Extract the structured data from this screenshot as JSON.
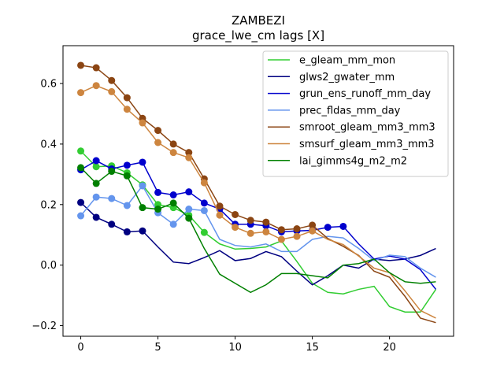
{
  "chart_data": {
    "type": "line",
    "title": "ZAMBEZI",
    "subtitle": "grace_lwe_cm lags [X]",
    "xlabel": "",
    "ylabel": "",
    "xlim": [
      -1.15,
      24.15
    ],
    "ylim": [
      -0.235,
      0.725
    ],
    "xticks": [
      0,
      5,
      10,
      15,
      20
    ],
    "yticks": [
      -0.2,
      0.0,
      0.2,
      0.4,
      0.6
    ],
    "ytick_labels": [
      "−0.2",
      "0.0",
      "0.2",
      "0.4",
      "0.6"
    ],
    "legend_position": "top-right",
    "grid": false,
    "x": [
      0,
      1,
      2,
      3,
      4,
      5,
      6,
      7,
      8,
      9,
      10,
      11,
      12,
      13,
      14,
      15,
      16,
      17,
      18,
      19,
      20,
      21,
      22,
      23
    ],
    "series": [
      {
        "name": "e_gleam_mm_mon",
        "color": "#32cd32",
        "values": [
          0.377,
          0.325,
          0.328,
          0.305,
          0.265,
          0.2,
          0.19,
          0.165,
          0.108,
          0.07,
          0.053,
          0.055,
          0.06,
          0.08,
          0.012,
          -0.06,
          -0.09,
          -0.095,
          -0.08,
          -0.07,
          -0.137,
          -0.155,
          -0.155,
          -0.08
        ],
        "markers": [
          0,
          1,
          2,
          3,
          4,
          5,
          6,
          7,
          8
        ]
      },
      {
        "name": "glws2_gwater_mm",
        "color": "#000080",
        "values": [
          0.207,
          0.158,
          0.135,
          0.11,
          0.113,
          0.06,
          0.01,
          0.005,
          0.025,
          0.048,
          0.015,
          0.022,
          0.045,
          0.028,
          -0.02,
          -0.065,
          -0.035,
          0.0,
          -0.01,
          0.02,
          0.015,
          0.02,
          0.032,
          0.055
        ],
        "markers": [
          0,
          1,
          2,
          3,
          4
        ]
      },
      {
        "name": "grun_ens_runoff_mm_day",
        "color": "#0000cd",
        "values": [
          0.315,
          0.345,
          0.318,
          0.33,
          0.34,
          0.24,
          0.232,
          0.242,
          0.205,
          0.185,
          0.135,
          0.135,
          0.13,
          0.11,
          0.113,
          0.115,
          0.125,
          0.128,
          0.07,
          0.02,
          0.03,
          0.02,
          -0.015,
          -0.08
        ],
        "markers": [
          0,
          1,
          2,
          3,
          4,
          5,
          6,
          7,
          8,
          9,
          10,
          11,
          12,
          13,
          14,
          15,
          16,
          17
        ]
      },
      {
        "name": "prec_fldas_mm_day",
        "color": "#6495ed",
        "values": [
          0.163,
          0.225,
          0.22,
          0.197,
          0.262,
          0.173,
          0.135,
          0.185,
          0.18,
          0.085,
          0.065,
          0.06,
          0.07,
          0.045,
          0.045,
          0.085,
          0.095,
          0.09,
          0.055,
          0.015,
          0.033,
          0.028,
          -0.01,
          -0.04
        ],
        "markers": [
          0,
          1,
          2,
          3,
          4,
          5,
          6,
          7,
          8
        ]
      },
      {
        "name": "smroot_gleam_mm3_mm3",
        "color": "#8b4513",
        "values": [
          0.66,
          0.652,
          0.61,
          0.553,
          0.485,
          0.445,
          0.4,
          0.372,
          0.285,
          0.195,
          0.167,
          0.148,
          0.142,
          0.117,
          0.12,
          0.132,
          0.088,
          0.062,
          0.032,
          -0.02,
          -0.04,
          -0.103,
          -0.175,
          -0.19
        ],
        "markers": [
          0,
          1,
          2,
          3,
          4,
          5,
          6,
          7,
          8,
          9,
          10,
          11,
          12,
          13,
          14,
          15
        ]
      },
      {
        "name": "smsurf_gleam_mm3_mm3",
        "color": "#cd853f",
        "values": [
          0.57,
          0.593,
          0.573,
          0.515,
          0.47,
          0.405,
          0.372,
          0.355,
          0.272,
          0.165,
          0.125,
          0.105,
          0.11,
          0.085,
          0.095,
          0.113,
          0.085,
          0.068,
          0.03,
          -0.01,
          -0.025,
          -0.085,
          -0.15,
          -0.175
        ],
        "markers": [
          0,
          1,
          2,
          3,
          4,
          5,
          6,
          7,
          8,
          9,
          10,
          11,
          12,
          13,
          14,
          15
        ]
      },
      {
        "name": "lai_gimms4g_m2_m2",
        "color": "#008000",
        "values": [
          0.322,
          0.27,
          0.31,
          0.295,
          0.19,
          0.185,
          0.205,
          0.155,
          0.055,
          -0.03,
          -0.06,
          -0.09,
          -0.065,
          -0.028,
          -0.028,
          -0.035,
          -0.042,
          0.0,
          0.005,
          0.02,
          -0.025,
          -0.055,
          -0.06,
          -0.055
        ],
        "markers": [
          0,
          1,
          2,
          3,
          4,
          5,
          6,
          7
        ]
      }
    ]
  }
}
